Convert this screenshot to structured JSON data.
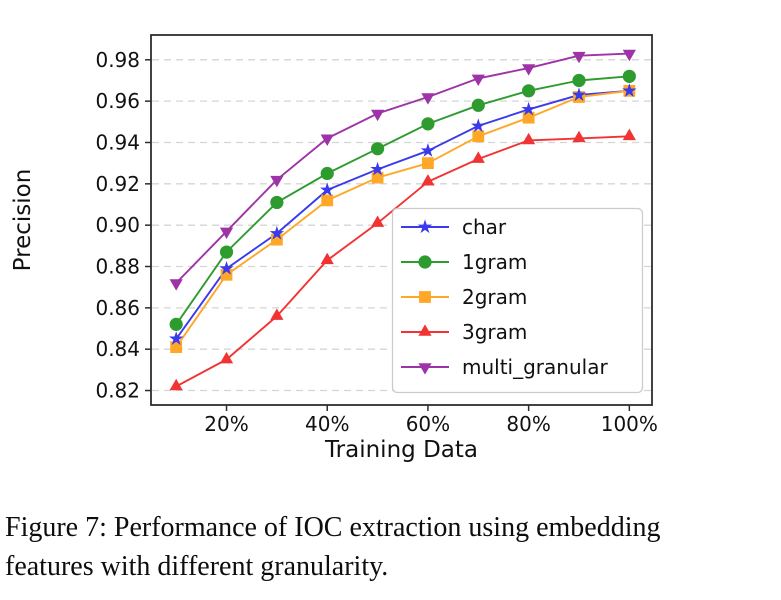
{
  "figure": {
    "caption": {
      "line1": "Figure 7: Performance of IOC extraction using embedding",
      "line2": "features with different granularity."
    }
  },
  "chart_data": {
    "type": "line",
    "title": "",
    "xlabel": "Training Data",
    "ylabel": "Precision",
    "x": [
      10,
      20,
      30,
      40,
      50,
      60,
      70,
      80,
      90,
      100
    ],
    "x_tick_values": [
      20,
      40,
      60,
      80,
      100
    ],
    "x_tick_labels": [
      "20%",
      "40%",
      "60%",
      "80%",
      "100%"
    ],
    "y_tick_values": [
      0.82,
      0.84,
      0.86,
      0.88,
      0.9,
      0.92,
      0.94,
      0.96,
      0.98
    ],
    "y_tick_labels": [
      "0.82",
      "0.84",
      "0.86",
      "0.88",
      "0.90",
      "0.92",
      "0.94",
      "0.96",
      "0.98"
    ],
    "xlim": [
      5,
      104.5
    ],
    "ylim": [
      0.813,
      0.992
    ],
    "grid": {
      "axis": "y",
      "style": "dashed",
      "color": "#d5d5d5"
    },
    "legend": {
      "position": "inside-lower-right",
      "border_color": "#cccccc",
      "entries": [
        "char",
        "1gram",
        "2gram",
        "3gram",
        "multi_granular"
      ]
    },
    "series": [
      {
        "name": "char",
        "marker": "star",
        "color": "#3a3aec",
        "values": [
          0.845,
          0.879,
          0.896,
          0.917,
          0.927,
          0.936,
          0.948,
          0.956,
          0.963,
          0.965
        ]
      },
      {
        "name": "1gram",
        "marker": "circle",
        "color": "#2e9b2e",
        "values": [
          0.852,
          0.887,
          0.911,
          0.925,
          0.937,
          0.949,
          0.958,
          0.965,
          0.97,
          0.972
        ]
      },
      {
        "name": "2gram",
        "marker": "square",
        "color": "#ffa827",
        "values": [
          0.841,
          0.876,
          0.893,
          0.912,
          0.923,
          0.93,
          0.943,
          0.952,
          0.962,
          0.965
        ]
      },
      {
        "name": "3gram",
        "marker": "triangle-up",
        "color": "#f23333",
        "values": [
          0.822,
          0.835,
          0.856,
          0.883,
          0.901,
          0.921,
          0.932,
          0.941,
          0.942,
          0.943
        ]
      },
      {
        "name": "multi_granular",
        "marker": "triangle-down",
        "color": "#9d33a6",
        "values": [
          0.872,
          0.897,
          0.922,
          0.942,
          0.954,
          0.962,
          0.971,
          0.976,
          0.982,
          0.983
        ]
      }
    ]
  }
}
